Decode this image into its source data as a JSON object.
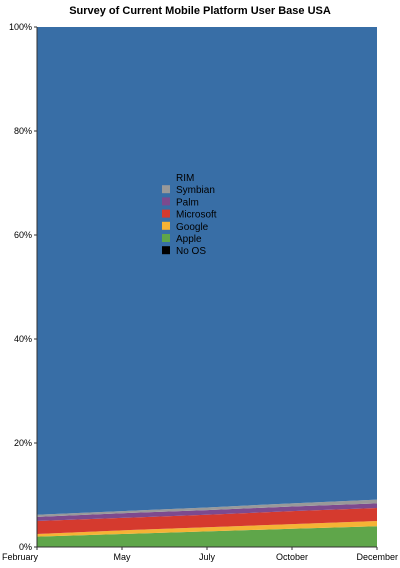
{
  "chart_data": {
    "type": "area",
    "stacked": true,
    "normalized": true,
    "title": "Survey of Current Mobile Platform User Base USA",
    "xlabel": "",
    "ylabel": "",
    "x": [
      "February",
      "May",
      "July",
      "October",
      "December"
    ],
    "ylim": [
      0,
      100
    ],
    "yticks": [
      "0%",
      "20%",
      "40%",
      "60%",
      "80%",
      "100%"
    ],
    "grid": false,
    "legend_position": "center",
    "series": [
      {
        "name": "No OS",
        "color": "#000000",
        "values": [
          0.0,
          0.0,
          0.0,
          0.0,
          0.0
        ]
      },
      {
        "name": "Apple",
        "color": "#5fa64a",
        "values": [
          2.0,
          2.5,
          3.0,
          3.5,
          4.0
        ]
      },
      {
        "name": "Google",
        "color": "#f5b335",
        "values": [
          0.5,
          0.7,
          0.8,
          0.9,
          1.0
        ]
      },
      {
        "name": "Microsoft",
        "color": "#d53a2e",
        "values": [
          2.5,
          2.4,
          2.4,
          2.5,
          2.5
        ]
      },
      {
        "name": "Palm",
        "color": "#7d4a8e",
        "values": [
          0.8,
          0.9,
          0.9,
          0.9,
          0.9
        ]
      },
      {
        "name": "Symbian",
        "color": "#999999",
        "values": [
          0.4,
          0.4,
          0.5,
          0.6,
          0.7
        ]
      },
      {
        "name": "RIM",
        "color": "#386ea6",
        "values": [
          93.8,
          93.1,
          92.4,
          91.6,
          90.9
        ]
      }
    ]
  }
}
